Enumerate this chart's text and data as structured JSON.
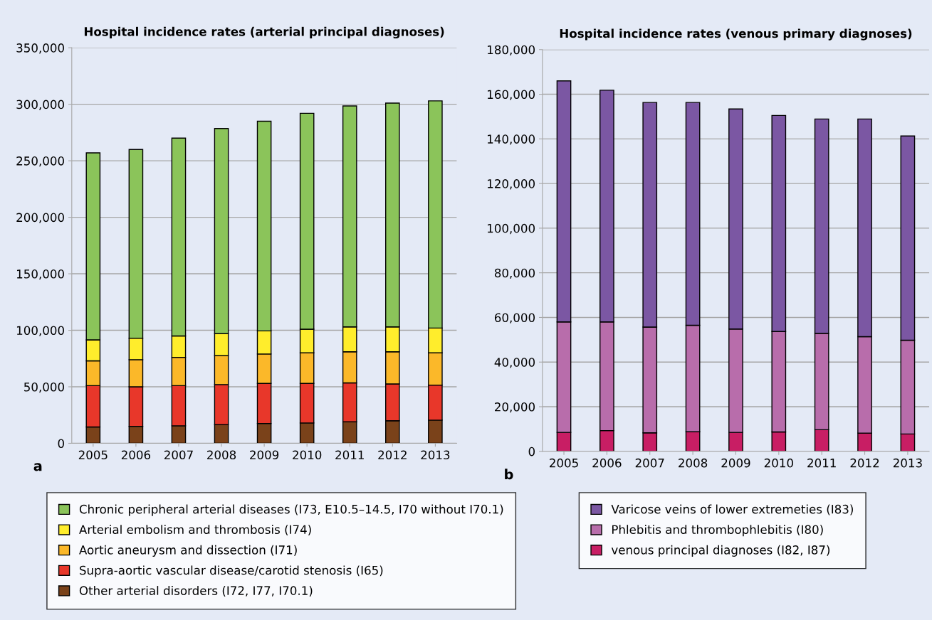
{
  "chart_data": [
    {
      "type": "bar",
      "stacked": true,
      "title": "Hospital incidence rates (arterial principal diagnoses)",
      "categories": [
        "2005",
        "2006",
        "2007",
        "2008",
        "2009",
        "2010",
        "2011",
        "2012",
        "2013"
      ],
      "series": [
        {
          "name": "Other arterial disorders (I72, I77, I70.1)",
          "color": "#7a421a",
          "values": [
            14500,
            15000,
            15500,
            16500,
            17500,
            18000,
            19000,
            20000,
            20500
          ]
        },
        {
          "name": "Supra-aortic vascular disease/carotid stenosis (I65)",
          "color": "#e8372a",
          "values": [
            36500,
            35000,
            35500,
            35500,
            35500,
            35000,
            34500,
            32500,
            31000
          ]
        },
        {
          "name": "Aortic aneurysm and dissection (I71)",
          "color": "#fbb829",
          "values": [
            22000,
            24000,
            25000,
            25500,
            26000,
            27000,
            27500,
            28500,
            28500
          ]
        },
        {
          "name": "Arterial embolism and thrombosis (I74)",
          "color": "#ffed2c",
          "values": [
            18500,
            19000,
            19000,
            19500,
            20500,
            21000,
            22000,
            22000,
            22000
          ]
        },
        {
          "name": "Chronic peripheral arterial diseases (I73, E10.5–14.5, I70 without I70.1)",
          "color": "#8bc45a",
          "values": [
            165500,
            167000,
            175000,
            181500,
            185500,
            191000,
            195500,
            198000,
            201000
          ]
        }
      ],
      "ylim": [
        0,
        350000
      ],
      "yticks": [
        {
          "value": 0,
          "label": "0"
        },
        {
          "value": 50000,
          "label": "50,000"
        },
        {
          "value": 100000,
          "label": "100,000"
        },
        {
          "value": 150000,
          "label": "150,000"
        },
        {
          "value": 200000,
          "label": "200,000"
        },
        {
          "value": 250000,
          "label": "250,000"
        },
        {
          "value": 300000,
          "label": "300,000"
        },
        {
          "value": 350000,
          "label": "350,000"
        }
      ],
      "grid": "y",
      "legend": "bottom",
      "annotations": [
        "a"
      ]
    },
    {
      "type": "bar",
      "stacked": true,
      "title": "Hospital incidence rates (venous primary diagnoses)",
      "categories": [
        "2005",
        "2006",
        "2007",
        "2008",
        "2009",
        "2010",
        "2011",
        "2012",
        "2013"
      ],
      "series": [
        {
          "name": "venous principal diagnoses (I82, I87)",
          "color": "#c81e64",
          "values": [
            8500,
            9300,
            8300,
            8800,
            8500,
            8700,
            9700,
            8200,
            7800
          ]
        },
        {
          "name": "Phlebitis and thrombophlebitis (I80)",
          "color": "#b86dab",
          "values": [
            49500,
            48700,
            47400,
            47700,
            46300,
            45000,
            43200,
            43200,
            42000
          ]
        },
        {
          "name": "Varicose veins of lower extremeties (I83)",
          "color": "#7b57a3",
          "values": [
            108000,
            103800,
            100600,
            99800,
            98600,
            96800,
            96000,
            97500,
            91500
          ]
        }
      ],
      "ylim": [
        0,
        180000
      ],
      "yticks": [
        {
          "value": 0,
          "label": "0"
        },
        {
          "value": 20000,
          "label": "20,000"
        },
        {
          "value": 40000,
          "label": "40,000"
        },
        {
          "value": 60000,
          "label": "60,000"
        },
        {
          "value": 80000,
          "label": "80,000"
        },
        {
          "value": 100000,
          "label": "100,000"
        },
        {
          "value": 120000,
          "label": "120,000"
        },
        {
          "value": 140000,
          "label": "140,000"
        },
        {
          "value": 160000,
          "label": "160,000"
        },
        {
          "value": 180000,
          "label": "180,000"
        }
      ],
      "grid": "y",
      "legend": "bottom",
      "annotations": [
        "b"
      ]
    }
  ]
}
